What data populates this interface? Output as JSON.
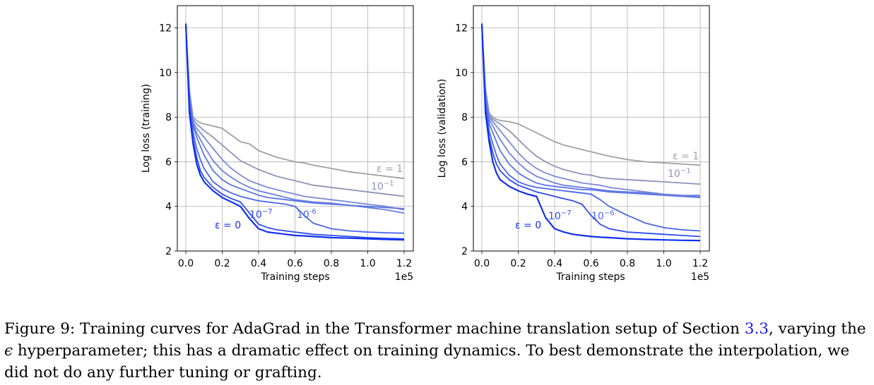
{
  "chart_data": [
    {
      "type": "line",
      "xlabel": "Training steps",
      "ylabel": "Log loss (training)",
      "x_multiplier_label": "1e5",
      "xlim": [
        0.0,
        1.2
      ],
      "ylim": [
        2,
        13
      ],
      "xticks": [
        "0.0",
        "0.2",
        "0.4",
        "0.6",
        "0.8",
        "1.0",
        "1.2"
      ],
      "yticks": [
        "2",
        "4",
        "6",
        "8",
        "10",
        "12"
      ],
      "grid": true,
      "annotations": {
        "eps1": {
          "pre": "ε = 1",
          "sup": ""
        },
        "em1": {
          "pre": "10",
          "sup": "−1"
        },
        "em7": {
          "pre": "10",
          "sup": "−7"
        },
        "em6": {
          "pre": "10",
          "sup": "-6"
        },
        "eps0": {
          "pre": "ε = 0",
          "sup": ""
        }
      },
      "x": [
        0,
        0.02,
        0.04,
        0.06,
        0.08,
        0.1,
        0.15,
        0.2,
        0.25,
        0.3,
        0.35,
        0.4,
        0.45,
        0.5,
        0.55,
        0.6,
        0.65,
        0.7,
        0.8,
        0.9,
        1.0,
        1.1,
        1.2
      ],
      "series": [
        {
          "color": "#a0a0a0",
          "values": [
            12.1,
            9.2,
            8.0,
            7.85,
            7.75,
            7.7,
            7.6,
            7.5,
            7.2,
            6.9,
            6.8,
            6.5,
            6.35,
            6.2,
            6.1,
            6.0,
            5.95,
            5.85,
            5.7,
            5.55,
            5.45,
            5.35,
            5.25
          ]
        },
        {
          "color": "#8c93b8",
          "values": [
            12.1,
            9.2,
            7.9,
            7.7,
            7.55,
            7.4,
            7.1,
            6.75,
            6.4,
            6.05,
            5.85,
            5.65,
            5.5,
            5.35,
            5.25,
            5.15,
            5.05,
            4.95,
            4.85,
            4.75,
            4.65,
            4.55,
            4.45
          ]
        },
        {
          "color": "#7b8ad6",
          "values": [
            12.1,
            9.0,
            7.8,
            7.5,
            7.3,
            7.1,
            6.6,
            6.1,
            5.7,
            5.4,
            5.15,
            5.0,
            4.85,
            4.75,
            4.65,
            4.55,
            4.45,
            4.4,
            4.3,
            4.2,
            4.1,
            4.0,
            3.85
          ]
        },
        {
          "color": "#6b7fe0",
          "values": [
            12.1,
            9.0,
            7.7,
            7.3,
            7.0,
            6.7,
            6.05,
            5.6,
            5.3,
            5.05,
            4.85,
            4.7,
            4.6,
            4.5,
            4.4,
            4.3,
            4.25,
            4.2,
            4.15,
            4.05,
            3.95,
            3.85,
            3.7
          ]
        },
        {
          "color": "#5b75e6",
          "values": [
            12.1,
            8.8,
            7.6,
            7.1,
            6.7,
            6.3,
            5.6,
            5.2,
            4.95,
            4.8,
            4.65,
            4.5,
            4.4,
            4.35,
            4.3,
            4.25,
            4.2,
            4.15,
            4.1,
            4.05,
            4.0,
            3.95,
            3.9
          ]
        },
        {
          "color": "#4a66ec",
          "values": [
            12.1,
            8.6,
            7.3,
            6.6,
            6.1,
            5.7,
            5.1,
            4.8,
            4.6,
            4.45,
            4.35,
            4.25,
            4.2,
            4.15,
            4.1,
            4.0,
            3.6,
            3.25,
            3.0,
            2.9,
            2.85,
            2.82,
            2.8
          ]
        },
        {
          "color": "#2e4cf0",
          "values": [
            12.1,
            8.5,
            7.0,
            6.2,
            5.6,
            5.3,
            4.85,
            4.55,
            4.35,
            4.2,
            3.7,
            3.2,
            3.05,
            2.95,
            2.9,
            2.85,
            2.8,
            2.75,
            2.7,
            2.65,
            2.6,
            2.57,
            2.55
          ]
        },
        {
          "color": "#1030f0",
          "values": [
            12.2,
            8.2,
            6.8,
            5.9,
            5.4,
            5.1,
            4.7,
            4.4,
            4.2,
            4.0,
            3.45,
            3.0,
            2.85,
            2.8,
            2.75,
            2.7,
            2.68,
            2.65,
            2.6,
            2.58,
            2.55,
            2.52,
            2.5
          ]
        }
      ]
    },
    {
      "type": "line",
      "xlabel": "Training steps",
      "ylabel": "Log loss (validation)",
      "x_multiplier_label": "1e5",
      "xlim": [
        0.0,
        1.2
      ],
      "ylim": [
        2,
        13
      ],
      "xticks": [
        "0.0",
        "0.2",
        "0.4",
        "0.6",
        "0.8",
        "1.0",
        "1.2"
      ],
      "yticks": [
        "2",
        "4",
        "6",
        "8",
        "10",
        "12"
      ],
      "grid": true,
      "annotations": {
        "eps1": {
          "pre": "ε = 1",
          "sup": ""
        },
        "em1": {
          "pre": "10",
          "sup": "−1"
        },
        "em7": {
          "pre": "10",
          "sup": "−7"
        },
        "em6": {
          "pre": "10",
          "sup": "−6"
        },
        "eps0": {
          "pre": "ε = 0",
          "sup": ""
        }
      },
      "x": [
        0,
        0.02,
        0.04,
        0.06,
        0.08,
        0.1,
        0.15,
        0.2,
        0.25,
        0.3,
        0.35,
        0.4,
        0.45,
        0.5,
        0.55,
        0.6,
        0.65,
        0.7,
        0.8,
        0.9,
        1.0,
        1.1,
        1.2
      ],
      "series": [
        {
          "color": "#a0a0a0",
          "values": [
            12.1,
            9.3,
            8.2,
            8.0,
            7.9,
            7.85,
            7.8,
            7.7,
            7.5,
            7.3,
            7.1,
            6.9,
            6.75,
            6.65,
            6.55,
            6.45,
            6.35,
            6.25,
            6.1,
            6.0,
            5.95,
            5.9,
            5.85
          ]
        },
        {
          "color": "#8c93b8",
          "values": [
            12.1,
            9.2,
            8.1,
            7.9,
            7.8,
            7.7,
            7.4,
            7.0,
            6.6,
            6.25,
            6.0,
            5.8,
            5.65,
            5.55,
            5.45,
            5.4,
            5.3,
            5.25,
            5.2,
            5.15,
            5.1,
            5.05,
            5.0
          ]
        },
        {
          "color": "#7b8ad6",
          "values": [
            12.1,
            9.1,
            8.0,
            7.8,
            7.6,
            7.4,
            6.9,
            6.4,
            6.0,
            5.7,
            5.5,
            5.35,
            5.25,
            5.15,
            5.05,
            5.0,
            4.95,
            4.85,
            4.75,
            4.65,
            4.55,
            4.5,
            4.5
          ]
        },
        {
          "color": "#6b7fe0",
          "values": [
            12.1,
            9.0,
            7.9,
            7.6,
            7.3,
            7.0,
            6.4,
            5.95,
            5.6,
            5.35,
            5.2,
            5.05,
            4.95,
            4.9,
            4.85,
            4.8,
            4.75,
            4.7,
            4.65,
            4.6,
            4.5,
            4.45,
            4.45
          ]
        },
        {
          "color": "#5b75e6",
          "values": [
            12.1,
            8.8,
            7.7,
            7.3,
            6.9,
            6.5,
            5.9,
            5.5,
            5.25,
            5.05,
            4.95,
            4.9,
            4.85,
            4.8,
            4.75,
            4.75,
            4.7,
            4.65,
            4.6,
            4.55,
            4.5,
            4.45,
            4.4
          ]
        },
        {
          "color": "#4a66ec",
          "values": [
            12.1,
            8.6,
            7.4,
            6.8,
            6.3,
            5.9,
            5.4,
            5.1,
            4.95,
            4.85,
            4.8,
            4.75,
            4.7,
            4.65,
            4.6,
            4.55,
            4.3,
            4.0,
            3.6,
            3.25,
            3.05,
            2.95,
            2.9
          ]
        },
        {
          "color": "#2e4cf0",
          "values": [
            12.1,
            8.4,
            7.1,
            6.4,
            5.9,
            5.6,
            5.2,
            4.95,
            4.8,
            4.65,
            4.55,
            4.45,
            4.35,
            4.25,
            4.1,
            3.6,
            3.2,
            3.0,
            2.85,
            2.8,
            2.75,
            2.7,
            2.65
          ]
        },
        {
          "color": "#1030f0",
          "values": [
            12.2,
            8.2,
            6.9,
            6.0,
            5.5,
            5.2,
            4.9,
            4.7,
            4.55,
            4.45,
            3.5,
            3.0,
            2.85,
            2.75,
            2.7,
            2.65,
            2.62,
            2.6,
            2.55,
            2.52,
            2.5,
            2.48,
            2.47
          ]
        }
      ]
    }
  ],
  "caption": {
    "figure_label": "Figure 9:",
    "text_a": "Training curves for AdaGrad in the Transformer machine translation setup of Section",
    "section_ref": "3.3",
    "text_b": ", varying the",
    "epsilon": "ϵ",
    "text_c": "hyperparameter; this has a dramatic effect on training dynamics. To best demonstrate the interpolation, we did not do any further tuning or grafting."
  }
}
